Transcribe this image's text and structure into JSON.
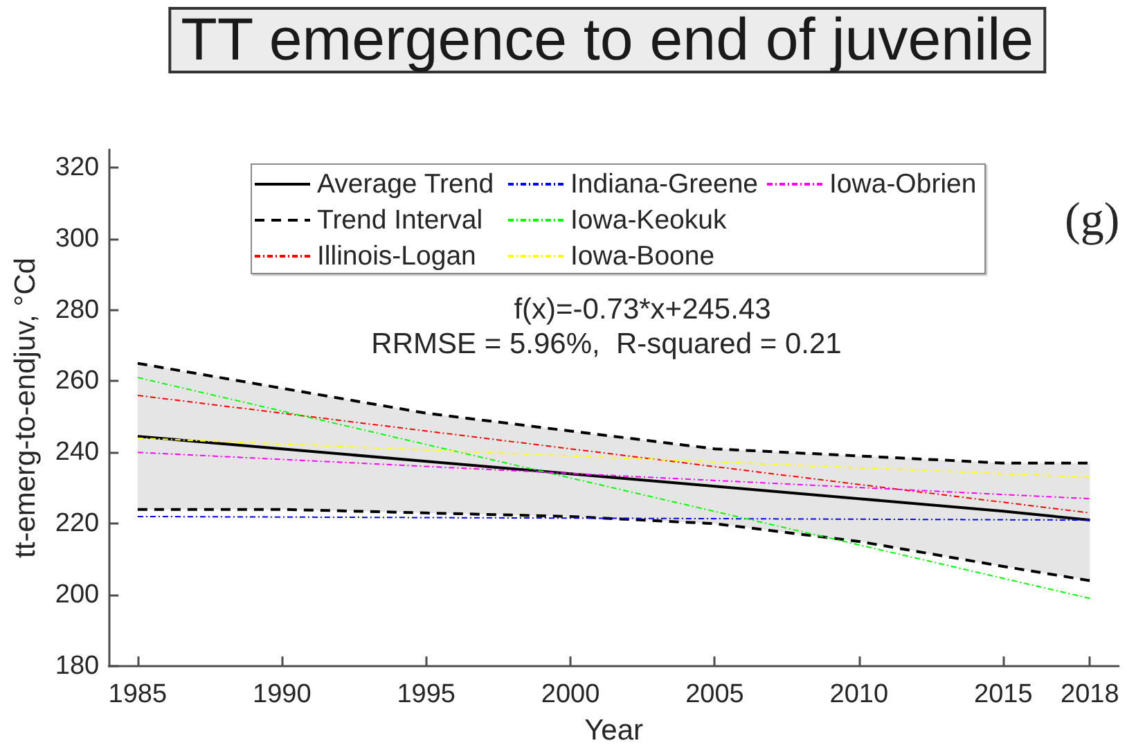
{
  "chart_data": {
    "type": "line",
    "title": "TT emergence to end of juvenile",
    "xlabel": "Year",
    "ylabel": "tt-emerg-to-endjuv, °Cd",
    "annotations": [
      "(g)",
      "f(x)=-0.73*x+245.43",
      "RRMSE = 5.96%,  R-squared = 0.21"
    ],
    "xlim": [
      1984,
      2019
    ],
    "xticks": [
      1985,
      1990,
      1995,
      2000,
      2005,
      2010,
      2015,
      2018
    ],
    "ylim": [
      180,
      325
    ],
    "yticks": [
      180,
      200,
      220,
      240,
      260,
      280,
      300,
      320
    ],
    "legend": "top",
    "series": [
      {
        "name": "Average Trend",
        "color": "#000000",
        "line_style": "solid",
        "x": [
          1985,
          1990,
          1995,
          2000,
          2005,
          2010,
          2015,
          2018
        ],
        "values": [
          244.5,
          241,
          237.5,
          234,
          230.5,
          227,
          223.5,
          221
        ],
        "lower": [
          224,
          224,
          223,
          222,
          220,
          215,
          208,
          204
        ],
        "upper": [
          265,
          258,
          251,
          246,
          241,
          239,
          237,
          237
        ]
      },
      {
        "name": "Trend Interval",
        "color": "#000000",
        "line_style": "dashed",
        "x": [
          1985,
          1990,
          1995,
          2000,
          2005,
          2010,
          2015,
          2018
        ],
        "values": [
          265,
          258,
          251,
          246,
          241,
          239,
          237,
          237
        ]
      },
      {
        "color": "#000000",
        "line_style": "dashed",
        "x": [
          1985,
          1990,
          1995,
          2000,
          2005,
          2010,
          2015,
          2018
        ],
        "values": [
          224,
          224,
          223,
          222,
          220,
          215,
          208,
          204
        ]
      },
      {
        "name": "Illinois-Logan",
        "color": "#ff0000",
        "line_style": "dotted",
        "x": [
          1985,
          2018
        ],
        "values": [
          256,
          223
        ]
      },
      {
        "name": "Indiana-Greene",
        "color": "#0000ff",
        "line_style": "dotted",
        "x": [
          1985,
          2018
        ],
        "values": [
          222,
          221
        ]
      },
      {
        "name": "Iowa-Keokuk",
        "color": "#00ff00",
        "line_style": "dotted",
        "x": [
          1985,
          2018
        ],
        "values": [
          261,
          199
        ]
      },
      {
        "name": "Iowa-Boone",
        "color": "#ffff00",
        "line_style": "dotted",
        "x": [
          1985,
          2018
        ],
        "values": [
          244,
          233
        ]
      },
      {
        "name": "Iowa-Obrien",
        "color": "#ff00ff",
        "line_style": "dotted",
        "x": [
          1985,
          2018
        ],
        "values": [
          240,
          227
        ]
      }
    ]
  }
}
